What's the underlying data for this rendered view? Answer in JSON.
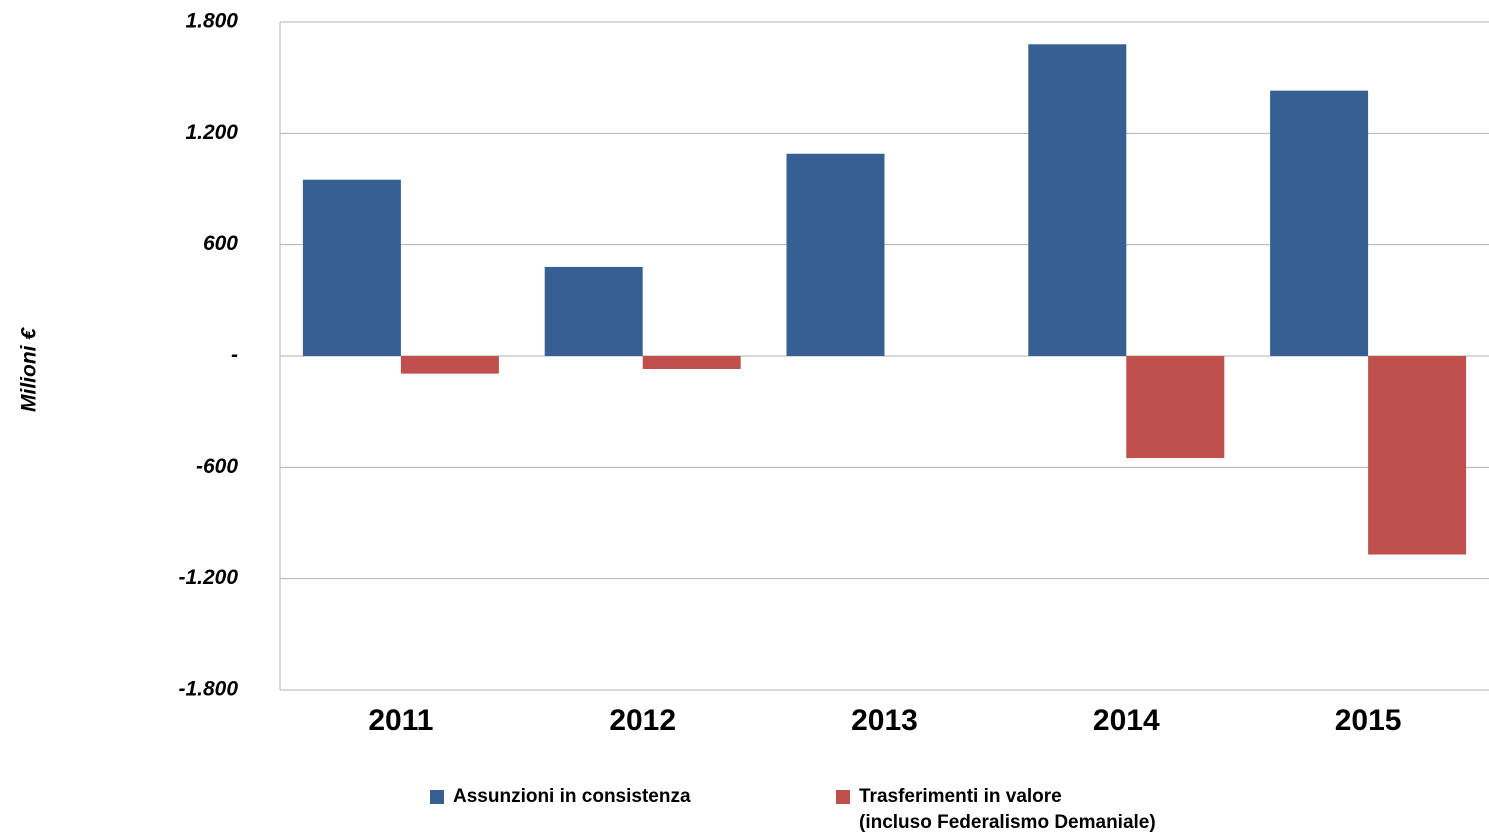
{
  "chart_data": {
    "type": "bar",
    "y_label": "Milioni €",
    "categories": [
      "2011",
      "2012",
      "2013",
      "2014",
      "2015"
    ],
    "series": [
      {
        "name": "Assunzioni in consistenza",
        "color": "#376092",
        "values": [
          950,
          480,
          1090,
          1680,
          1430
        ]
      },
      {
        "name": "Trasferimenti in valore\n(incluso Federalismo Demaniale)",
        "color": "#c0504d",
        "values": [
          -95,
          -70,
          0,
          -550,
          -1070
        ]
      }
    ],
    "ylim": [
      -1800,
      1800
    ],
    "yticks": [
      {
        "value": -1800,
        "label": "-1.800"
      },
      {
        "value": -1200,
        "label": "-1.200"
      },
      -600,
      {
        "value": 0,
        "label": "-"
      },
      600,
      {
        "value": 1200,
        "label": "1.200"
      },
      {
        "value": 1800,
        "label": "1.800"
      }
    ],
    "grid": true
  }
}
